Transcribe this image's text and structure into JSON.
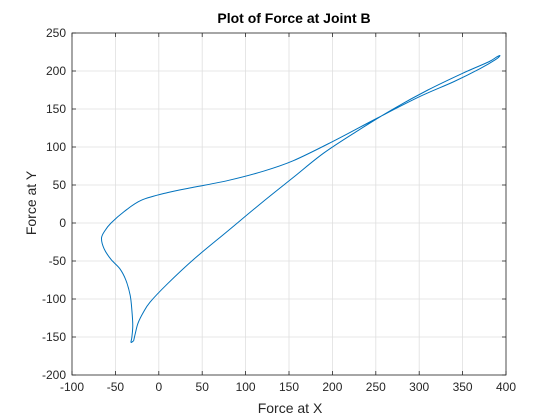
{
  "chart_data": {
    "type": "line",
    "title": "Plot of Force at Joint B",
    "xlabel": "Force at X",
    "ylabel": "Force at Y",
    "xlim": [
      -100,
      400
    ],
    "ylim": [
      -200,
      250
    ],
    "xticks": [
      -100,
      -50,
      0,
      50,
      100,
      150,
      200,
      250,
      300,
      350,
      400
    ],
    "yticks": [
      -200,
      -150,
      -100,
      -50,
      0,
      50,
      100,
      150,
      200,
      250
    ],
    "grid": true,
    "series": [
      {
        "color": "#0072BD",
        "x": [
          -29,
          -27,
          -24,
          -18,
          -10,
          10,
          40,
          80,
          120,
          155,
          190,
          230,
          270,
          310,
          350,
          380,
          390,
          393,
          388,
          370,
          340,
          300,
          250,
          200,
          155,
          120,
          80,
          40,
          10,
          -20,
          -40,
          -55,
          -62,
          -66,
          -63,
          -55,
          -45,
          -38,
          -33,
          -31,
          -30,
          -31,
          -32,
          -29
        ],
        "y": [
          -155,
          -145,
          -132,
          -118,
          -104,
          -80,
          -48,
          -10,
          28,
          60,
          92,
          122,
          150,
          175,
          197,
          212,
          219,
          220,
          215,
          203,
          186,
          166,
          137,
          107,
          82,
          68,
          56,
          47,
          40,
          30,
          15,
          0,
          -10,
          -20,
          -34,
          -48,
          -60,
          -75,
          -95,
          -115,
          -135,
          -150,
          -157,
          -155
        ]
      }
    ]
  }
}
